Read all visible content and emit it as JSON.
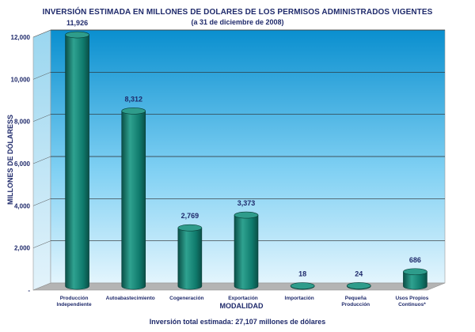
{
  "chart_data": {
    "type": "bar",
    "title": "INVERSIÓN ESTIMADA EN MILLONES DE DOLARES DE LOS PERMISOS ADMINISTRADOS VIGENTES",
    "subtitle": "(a 31 de diciembre de 2008)",
    "xlabel": "MODALIDAD",
    "ylabel": "MILLONES DE DÓLARESS",
    "ylim": [
      0,
      12000
    ],
    "yticks": [
      "-",
      "2,000",
      "4,000",
      "6,000",
      "8,000",
      "10,000",
      "12,000"
    ],
    "grid": true,
    "categories": [
      [
        "Producción",
        "Independiente"
      ],
      [
        "Autoabastecimiento"
      ],
      [
        "Cogeneración"
      ],
      [
        "Exportación"
      ],
      [
        "Importación"
      ],
      [
        "Pequeña",
        "Producción"
      ],
      [
        "Usos Propios",
        "Continuos*"
      ]
    ],
    "values": [
      11926,
      8312,
      2769,
      3373,
      18,
      24,
      686
    ],
    "value_labels": [
      "11,926",
      "8,312",
      "2,769",
      "3,373",
      "18",
      "24",
      "686"
    ],
    "footnote": "Inversión total estimada: 27,107 millones de dólares",
    "colors": {
      "bar": "#0f7a6c",
      "bar_dark": "#0a4f47",
      "bar_light": "#2fa290",
      "wall_top": "#0a8fcf",
      "wall_bottom": "#e3f5fd",
      "floor": "#b4b4b4",
      "text": "#1f2a6b"
    }
  }
}
